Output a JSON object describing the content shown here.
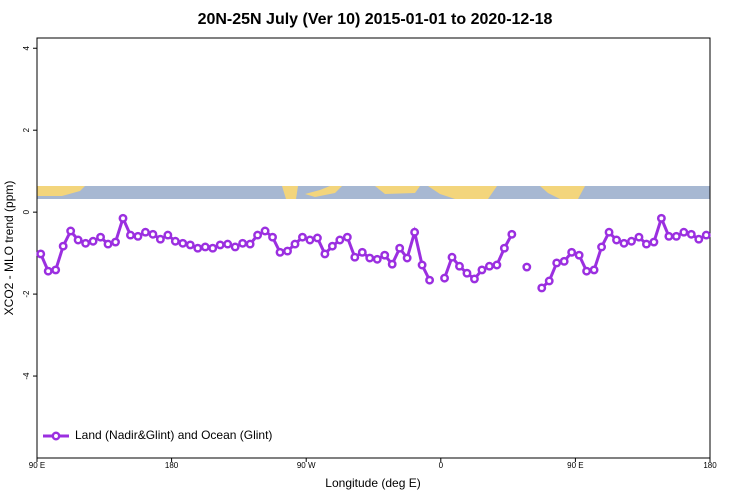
{
  "chart_data": {
    "type": "line",
    "title": "20N-25N July (Ver 10)   2015-01-01 to 2020-12-18",
    "x_label": "Longitude (deg E)",
    "y_label": "XCO2 - MLO trend (ppm)",
    "xlim": [
      90,
      540
    ],
    "xticks": [
      {
        "value": 90,
        "label": "90 E"
      },
      {
        "value": 180,
        "label": "180"
      },
      {
        "value": 270,
        "label": "90 W"
      },
      {
        "value": 360,
        "label": "0"
      },
      {
        "value": 450,
        "label": "90 E"
      },
      {
        "value": 540,
        "label": "180"
      }
    ],
    "ylim": [
      -6,
      4.25
    ],
    "yticks": [
      4,
      2,
      0,
      -2,
      -4
    ],
    "legend": "lower left",
    "x": [
      92.5,
      97.5,
      102.5,
      107.5,
      112.5,
      117.5,
      122.5,
      127.5,
      132.5,
      137.5,
      142.5,
      147.5,
      152.5,
      157.5,
      162.5,
      167.5,
      172.5,
      177.5,
      182.5,
      187.5,
      192.5,
      197.5,
      202.5,
      207.5,
      212.5,
      217.5,
      222.5,
      227.5,
      232.5,
      237.5,
      242.5,
      247.5,
      252.5,
      257.5,
      262.5,
      267.5,
      272.5,
      277.5,
      282.5,
      287.5,
      292.5,
      297.5,
      302.5,
      307.5,
      312.5,
      317.5,
      322.5,
      327.5,
      332.5,
      337.5,
      342.5,
      347.5,
      352.5,
      357.5,
      362.5,
      367.5,
      372.5,
      377.5,
      382.5,
      387.5,
      392.5,
      397.5,
      402.5,
      407.5,
      412.5,
      417.5,
      422.5,
      427.5,
      432.5,
      437.5,
      442.5,
      447.5,
      452.5,
      457.5,
      462.5,
      467.5,
      472.5,
      477.5,
      482.5,
      487.5,
      492.5,
      497.5,
      502.5,
      507.5,
      512.5,
      517.5,
      522.5,
      527.5,
      532.5,
      537.5
    ],
    "series": [
      {
        "name": "Land (Nadir&Glint) and Ocean (Glint)",
        "color": "#9b2fe0",
        "values": [
          -1.02,
          -1.44,
          -1.41,
          -0.83,
          -0.46,
          -0.68,
          -0.76,
          -0.71,
          -0.61,
          -0.78,
          -0.73,
          -0.15,
          -0.56,
          -0.59,
          -0.49,
          -0.54,
          -0.66,
          -0.56,
          -0.71,
          -0.76,
          -0.8,
          -0.88,
          -0.85,
          -0.88,
          -0.8,
          -0.78,
          -0.85,
          -0.76,
          -0.78,
          -0.56,
          -0.46,
          -0.61,
          -0.98,
          -0.95,
          -0.78,
          -0.61,
          -0.68,
          -0.63,
          -1.02,
          -0.83,
          -0.68,
          -0.61,
          -1.1,
          -0.98,
          -1.12,
          -1.15,
          -1.05,
          -1.27,
          -0.88,
          -1.12,
          -0.49,
          -1.29,
          -1.66,
          null,
          -1.61,
          -1.1,
          -1.32,
          -1.49,
          -1.63,
          -1.41,
          -1.32,
          -1.29,
          -0.88,
          -0.54,
          null,
          -1.34,
          null,
          -1.85,
          -1.68,
          -1.24,
          -1.2,
          -0.98,
          -1.05,
          -1.44,
          -1.41,
          -0.85,
          -0.49,
          -0.68,
          -0.76,
          -0.71,
          -0.61,
          -0.78,
          -0.73,
          -0.15,
          -0.59,
          -0.59,
          -0.49,
          -0.54,
          -0.66,
          -0.56
        ]
      }
    ]
  }
}
